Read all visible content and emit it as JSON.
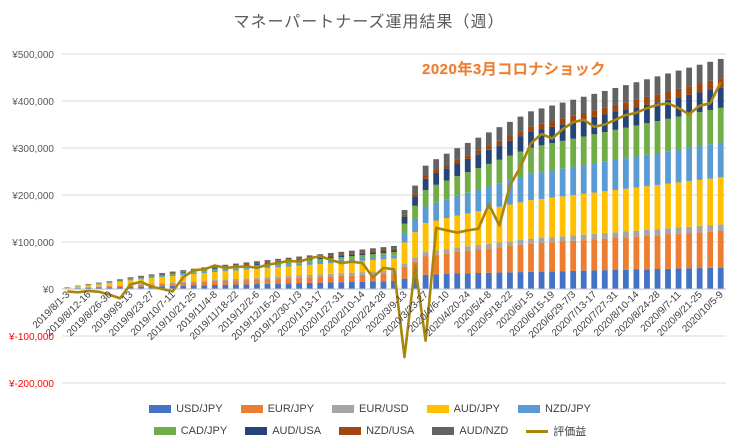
{
  "chart_data": {
    "type": "bar",
    "title": "マネーパートナーズ運用結果（週）",
    "annotation": "2020年3月コロナショック",
    "ylim": [
      -200000,
      500000
    ],
    "yticks": [
      {
        "value": 500000,
        "label": "¥500,000",
        "color": "#595959"
      },
      {
        "value": 400000,
        "label": "¥400,000",
        "color": "#595959"
      },
      {
        "value": 300000,
        "label": "¥300,000",
        "color": "#595959"
      },
      {
        "value": 200000,
        "label": "¥200,000",
        "color": "#595959"
      },
      {
        "value": 100000,
        "label": "¥100,000",
        "color": "#595959"
      },
      {
        "value": 0,
        "label": "¥0",
        "color": "#595959"
      },
      {
        "value": -100000,
        "label": "¥-100,000",
        "color": "#ff0000"
      },
      {
        "value": -200000,
        "label": "¥-200,000",
        "color": "#ff0000"
      }
    ],
    "grid": true,
    "legend_position": "bottom",
    "categories": [
      "2019/8/1-3",
      "2019/8/5-9",
      "2019/8/12-16",
      "2019/8/19-23",
      "2019/8/26-30",
      "2019/9/2-6",
      "2019/9/9-13",
      "2019/9/16-20",
      "2019/9/23-27",
      "2019/9/30-10/4",
      "2019/10/7-11",
      "2019/10/14-18",
      "2019/10/21-25",
      "2019/10/28-11/1",
      "2019/11/4-8",
      "2019/11/11-15",
      "2019/11/18-22",
      "2019/11/25-29",
      "2019/12/2-6",
      "2019/12/9-13",
      "2019/12/16-20",
      "2019/12/23-27",
      "2019/12/30-1/3",
      "2020/1/6-10",
      "2020/1/13-17",
      "2020/1/20-24",
      "2020/1/27-31",
      "2020/2/3-7",
      "2020/2/10-14",
      "2020/2/17-21",
      "2020/2/24-28",
      "2020/3/2-6",
      "2020/3/9-13",
      "2020/3/16-20",
      "2020/3/23-27",
      "2020/3/30-4/3",
      "2020/4/6-10",
      "2020/4/13-17",
      "2020/4/20-24",
      "2020/4/27-5/1",
      "2020/5/4-8",
      "2020/5/11-15",
      "2020/5/18-22",
      "2020/5/25-29",
      "2020/6/1-5",
      "2020/6/8-12",
      "2020/6/15-19",
      "2020/6/22-26",
      "2020/6/29-7/3",
      "2020/7/6-10",
      "2020/7/13-17",
      "2020/7/20-24",
      "2020/7/27-31",
      "2020/8/3-7",
      "2020/8/10-14",
      "2020/8/17-21",
      "2020/8/24-28",
      "2020/8/31-9/4",
      "2020/9/7-11",
      "2020/9/14-18",
      "2020/9/21-25",
      "2020/9/28-10/2",
      "2020/10/5-9"
    ],
    "tick_labels": [
      "2019/8/1-3",
      "2019/8/12-16",
      "2019/8/26-30",
      "2019/9/9-13",
      "2019/9/23-27",
      "2019/10/7-11",
      "2019/10/21-25",
      "2019/11/4-8",
      "2019/11/18-22",
      "2019/12/2-6",
      "2019/12/16-20",
      "2019/12/30-1/3",
      "2020/1/13-17",
      "2020/1/27-31",
      "2020/2/10-14",
      "2020/2/24-28",
      "2020/3/9-13",
      "2020/3/23-27",
      "2020/4/6-10",
      "2020/4/20-24",
      "2020/5/4-8",
      "2020/5/18-22",
      "2020/6/1-5",
      "2020/6/15-19",
      "2020/6/29-7/3",
      "2020/7/13-17",
      "2020/7/27-31",
      "2020/8/10-14",
      "2020/8/24-28",
      "2020/9/7-11",
      "2020/9/21-25",
      "2020/10/5-9"
    ],
    "series": [
      {
        "name": "USD/JPY",
        "color": "#4472c4",
        "values": [
          1000,
          2000,
          2500,
          3000,
          3500,
          4000,
          4500,
          5000,
          5500,
          6000,
          6500,
          7000,
          7500,
          8000,
          8500,
          9000,
          9500,
          10000,
          10500,
          11000,
          11500,
          12000,
          12500,
          13000,
          13500,
          14000,
          14500,
          15000,
          15500,
          16000,
          16500,
          17000,
          22000,
          25000,
          30000,
          31000,
          32000,
          33000,
          33500,
          34000,
          34500,
          35000,
          35500,
          36000,
          36500,
          37000,
          37500,
          38000,
          38500,
          39000,
          39500,
          40000,
          40500,
          41000,
          41500,
          42000,
          42500,
          43000,
          43500,
          44000,
          44500,
          45000,
          45500
        ]
      },
      {
        "name": "EUR/JPY",
        "color": "#ed7d31",
        "values": [
          500,
          1000,
          1500,
          2000,
          2500,
          3000,
          3500,
          4000,
          4500,
          5000,
          5500,
          6000,
          6500,
          7000,
          7500,
          8000,
          8500,
          9000,
          9500,
          10000,
          10500,
          11000,
          11500,
          12000,
          12500,
          13000,
          13500,
          14000,
          14500,
          15000,
          15500,
          16000,
          25000,
          33000,
          40000,
          42000,
          44000,
          46000,
          48000,
          50000,
          52000,
          54000,
          56000,
          58000,
          60000,
          61000,
          62000,
          63000,
          64000,
          65000,
          66000,
          67000,
          68000,
          69000,
          70000,
          71000,
          72000,
          73000,
          74000,
          75000,
          76000,
          77000,
          78000
        ]
      },
      {
        "name": "EUR/USD",
        "color": "#a5a5a5",
        "values": [
          300,
          500,
          700,
          900,
          1100,
          1300,
          1500,
          1700,
          1900,
          2100,
          2300,
          2500,
          2700,
          2900,
          3100,
          3300,
          3500,
          3700,
          3900,
          4100,
          4300,
          4500,
          4700,
          4900,
          5100,
          5300,
          5500,
          5700,
          5900,
          6100,
          6300,
          6500,
          7000,
          8000,
          8500,
          8700,
          8900,
          9100,
          9300,
          9500,
          9700,
          9900,
          10100,
          10300,
          10500,
          10700,
          10900,
          11100,
          11300,
          11500,
          11700,
          11900,
          12100,
          12300,
          12500,
          12700,
          12900,
          13100,
          13300,
          13500,
          13700,
          13900,
          14000
        ]
      },
      {
        "name": "AUD/JPY",
        "color": "#ffc000",
        "values": [
          1000,
          2000,
          3000,
          4000,
          5000,
          7000,
          9000,
          10000,
          11000,
          12000,
          13000,
          14000,
          15000,
          16000,
          17000,
          17500,
          18000,
          18500,
          19000,
          19500,
          20000,
          20500,
          21000,
          21500,
          22000,
          22500,
          23000,
          23500,
          24000,
          24500,
          25000,
          25500,
          45000,
          55000,
          62000,
          64000,
          66000,
          68000,
          70000,
          72000,
          74000,
          76000,
          78000,
          80000,
          82000,
          83000,
          84000,
          85000,
          86000,
          87000,
          88000,
          89000,
          90000,
          91000,
          92000,
          93000,
          94000,
          95000,
          96000,
          97000,
          98000,
          99000,
          100000
        ]
      },
      {
        "name": "NZD/JPY",
        "color": "#5b9bd5",
        "values": [
          300,
          500,
          800,
          1000,
          1200,
          1500,
          1800,
          2000,
          2200,
          2400,
          2600,
          2800,
          3000,
          3200,
          3400,
          3600,
          3800,
          4000,
          4200,
          4400,
          4600,
          4800,
          5000,
          5200,
          5400,
          5600,
          5800,
          6000,
          6200,
          6400,
          6600,
          6800,
          20000,
          28000,
          35000,
          38000,
          40000,
          42000,
          44000,
          46000,
          48000,
          50000,
          52000,
          54000,
          56000,
          57000,
          58000,
          59000,
          60000,
          61000,
          62000,
          63000,
          64000,
          65000,
          66000,
          67000,
          68000,
          69000,
          70000,
          71000,
          72000,
          73000,
          74000
        ]
      },
      {
        "name": "CAD/JPY",
        "color": "#70ad47",
        "values": [
          300,
          500,
          800,
          1000,
          1200,
          1500,
          1800,
          2000,
          2200,
          2400,
          2600,
          2800,
          3000,
          3200,
          3400,
          3600,
          3800,
          4000,
          4200,
          4400,
          4600,
          4800,
          5000,
          5200,
          5400,
          5600,
          5800,
          6000,
          6200,
          6400,
          6600,
          6800,
          20000,
          28000,
          35000,
          38000,
          40000,
          42000,
          44000,
          46000,
          48000,
          50000,
          52000,
          54000,
          56000,
          57000,
          58000,
          59000,
          60000,
          61000,
          62000,
          63000,
          64000,
          65000,
          66000,
          67000,
          68000,
          69000,
          70000,
          71000,
          72000,
          73000,
          74000
        ]
      },
      {
        "name": "AUD/USA",
        "color": "#264478",
        "values": [
          300,
          400,
          500,
          600,
          700,
          800,
          900,
          1000,
          1100,
          1200,
          1300,
          1400,
          1500,
          1600,
          1700,
          1800,
          1900,
          2000,
          2100,
          2200,
          2300,
          2400,
          2500,
          2600,
          2700,
          2800,
          2900,
          3000,
          3100,
          3200,
          3300,
          3400,
          15000,
          20000,
          24000,
          25000,
          26000,
          27000,
          28000,
          29000,
          30000,
          31000,
          32000,
          33000,
          34000,
          34500,
          35000,
          35500,
          36000,
          36500,
          37000,
          37500,
          38000,
          38500,
          39000,
          39500,
          40000,
          40500,
          41000,
          41500,
          42000,
          42500,
          43000
        ]
      },
      {
        "name": "NZD/USA",
        "color": "#9e480e",
        "values": [
          200,
          300,
          400,
          500,
          600,
          700,
          800,
          900,
          1000,
          1100,
          1200,
          1300,
          1400,
          1500,
          1600,
          1700,
          1800,
          1900,
          2000,
          2100,
          2200,
          2300,
          2400,
          2500,
          2600,
          2700,
          2800,
          2900,
          3000,
          3100,
          3200,
          3300,
          4000,
          5000,
          6000,
          6500,
          7000,
          7500,
          8000,
          8500,
          9000,
          9500,
          10000,
          10500,
          11000,
          11500,
          12000,
          12500,
          13000,
          13500,
          14000,
          14500,
          15000,
          15500,
          16000,
          16500,
          17000,
          17500,
          18000,
          18500,
          19000,
          19500,
          20000
        ]
      },
      {
        "name": "AUD/NZD",
        "color": "#636363",
        "values": [
          200,
          300,
          500,
          700,
          900,
          1100,
          1300,
          1500,
          1700,
          1900,
          2100,
          2300,
          2500,
          2700,
          2900,
          3100,
          3300,
          3500,
          3700,
          3900,
          4100,
          4300,
          4500,
          4700,
          4900,
          5100,
          5300,
          5500,
          5700,
          5900,
          6100,
          6300,
          10000,
          18000,
          22000,
          23000,
          24000,
          25000,
          26000,
          27000,
          28000,
          29000,
          30000,
          31000,
          32000,
          32500,
          33000,
          33500,
          34000,
          34500,
          35000,
          35500,
          36000,
          36500,
          37000,
          37500,
          38000,
          38500,
          39000,
          39500,
          40000,
          40500,
          41000
        ]
      }
    ],
    "line_series": {
      "name": "評価益",
      "color": "#a8860c",
      "values": [
        -5000,
        -7000,
        -4000,
        -6000,
        -12000,
        -20000,
        10000,
        15000,
        5000,
        0,
        -5000,
        25000,
        40000,
        42000,
        50000,
        45000,
        47000,
        48000,
        45000,
        52000,
        55000,
        60000,
        58000,
        65000,
        70000,
        62000,
        55000,
        58000,
        55000,
        25000,
        45000,
        42000,
        -145000,
        50000,
        -110000,
        130000,
        125000,
        120000,
        125000,
        128000,
        180000,
        135000,
        220000,
        260000,
        310000,
        330000,
        320000,
        340000,
        355000,
        360000,
        345000,
        350000,
        360000,
        370000,
        375000,
        385000,
        392000,
        395000,
        385000,
        372000,
        390000,
        395000,
        440000
      ]
    }
  }
}
